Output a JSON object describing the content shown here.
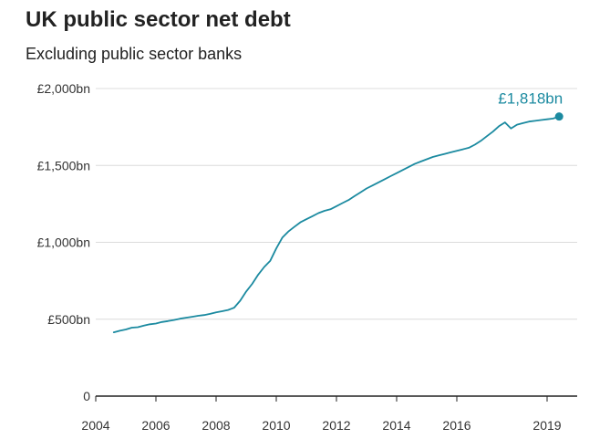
{
  "title": "UK public sector net debt",
  "subtitle": "Excluding public sector banks",
  "colors": {
    "line": "#1b8aa0",
    "grid": "#dcdcdc",
    "axis": "#222222",
    "text": "#333333"
  },
  "chart_data": {
    "type": "line",
    "title": "UK public sector net debt",
    "subtitle": "Excluding public sector banks",
    "xlabel": "",
    "ylabel": "",
    "xlim": [
      2004,
      2020
    ],
    "ylim": [
      0,
      2000
    ],
    "grid": true,
    "x_ticks": [
      {
        "value": 2004,
        "label": "2004"
      },
      {
        "value": 2006,
        "label": "2006"
      },
      {
        "value": 2008,
        "label": "2008"
      },
      {
        "value": 2010,
        "label": "2010"
      },
      {
        "value": 2012,
        "label": "2012"
      },
      {
        "value": 2014,
        "label": "2014"
      },
      {
        "value": 2016,
        "label": "2016"
      },
      {
        "value": 2019,
        "label": "2019"
      }
    ],
    "y_ticks": [
      {
        "value": 0,
        "label": "0"
      },
      {
        "value": 500,
        "label": "£500bn"
      },
      {
        "value": 1000,
        "label": "£1,000bn"
      },
      {
        "value": 1500,
        "label": "£1,500bn"
      },
      {
        "value": 2000,
        "label": "£2,000bn"
      }
    ],
    "series": [
      {
        "values": [
          [
            2004.6,
            415
          ],
          [
            2004.8,
            425
          ],
          [
            2005.0,
            433
          ],
          [
            2005.2,
            445
          ],
          [
            2005.4,
            448
          ],
          [
            2005.6,
            458
          ],
          [
            2005.8,
            467
          ],
          [
            2006.0,
            472
          ],
          [
            2006.2,
            482
          ],
          [
            2006.4,
            488
          ],
          [
            2006.6,
            495
          ],
          [
            2006.8,
            503
          ],
          [
            2007.0,
            510
          ],
          [
            2007.2,
            516
          ],
          [
            2007.4,
            522
          ],
          [
            2007.6,
            527
          ],
          [
            2007.8,
            535
          ],
          [
            2008.0,
            545
          ],
          [
            2008.2,
            552
          ],
          [
            2008.4,
            560
          ],
          [
            2008.6,
            575
          ],
          [
            2008.8,
            620
          ],
          [
            2009.0,
            680
          ],
          [
            2009.2,
            730
          ],
          [
            2009.4,
            790
          ],
          [
            2009.6,
            840
          ],
          [
            2009.8,
            880
          ],
          [
            2010.0,
            960
          ],
          [
            2010.2,
            1030
          ],
          [
            2010.4,
            1070
          ],
          [
            2010.6,
            1100
          ],
          [
            2010.8,
            1130
          ],
          [
            2011.0,
            1150
          ],
          [
            2011.2,
            1170
          ],
          [
            2011.4,
            1190
          ],
          [
            2011.6,
            1205
          ],
          [
            2011.8,
            1215
          ],
          [
            2012.0,
            1235
          ],
          [
            2012.2,
            1255
          ],
          [
            2012.4,
            1275
          ],
          [
            2012.6,
            1300
          ],
          [
            2012.8,
            1325
          ],
          [
            2013.0,
            1350
          ],
          [
            2013.2,
            1370
          ],
          [
            2013.4,
            1390
          ],
          [
            2013.6,
            1410
          ],
          [
            2013.8,
            1430
          ],
          [
            2014.0,
            1450
          ],
          [
            2014.2,
            1470
          ],
          [
            2014.4,
            1490
          ],
          [
            2014.6,
            1510
          ],
          [
            2014.8,
            1525
          ],
          [
            2015.0,
            1540
          ],
          [
            2015.2,
            1555
          ],
          [
            2015.4,
            1565
          ],
          [
            2015.6,
            1575
          ],
          [
            2015.8,
            1585
          ],
          [
            2016.0,
            1595
          ],
          [
            2016.2,
            1605
          ],
          [
            2016.4,
            1615
          ],
          [
            2016.6,
            1635
          ],
          [
            2016.8,
            1660
          ],
          [
            2017.0,
            1690
          ],
          [
            2017.2,
            1720
          ],
          [
            2017.4,
            1755
          ],
          [
            2017.6,
            1780
          ],
          [
            2017.8,
            1740
          ],
          [
            2018.0,
            1765
          ],
          [
            2018.2,
            1775
          ],
          [
            2018.4,
            1785
          ],
          [
            2018.6,
            1790
          ],
          [
            2018.8,
            1795
          ],
          [
            2019.0,
            1800
          ],
          [
            2019.2,
            1805
          ],
          [
            2019.4,
            1818
          ]
        ]
      }
    ],
    "end_point": {
      "x": 2019.4,
      "y": 1818,
      "label": "£1,818bn"
    }
  }
}
